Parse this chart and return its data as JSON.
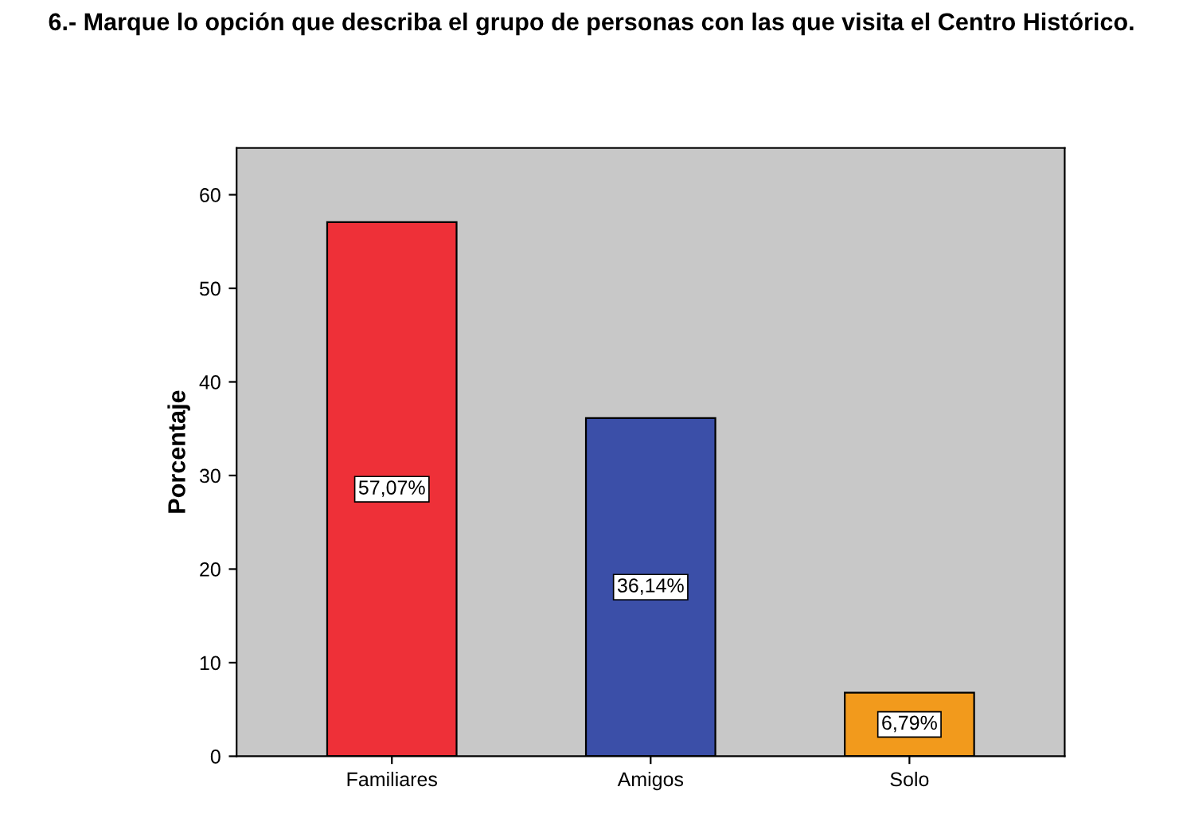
{
  "chart_data": {
    "type": "bar",
    "title": "6.- Marque lo opción que describa el grupo de personas con las que visita el Centro Histórico.",
    "ylabel": "Porcentaje",
    "categories": [
      "Familiares",
      "Amigos",
      "Solo"
    ],
    "values": [
      57.07,
      36.14,
      6.79
    ],
    "colors": [
      "#ee3038",
      "#3b4fa8",
      "#f29a1c"
    ],
    "value_labels": [
      "57,07%",
      "36,14%",
      "6,79%"
    ],
    "ylim": [
      0,
      65
    ],
    "yticks": [
      0,
      10,
      20,
      30,
      40,
      50,
      60
    ],
    "grid": false
  }
}
